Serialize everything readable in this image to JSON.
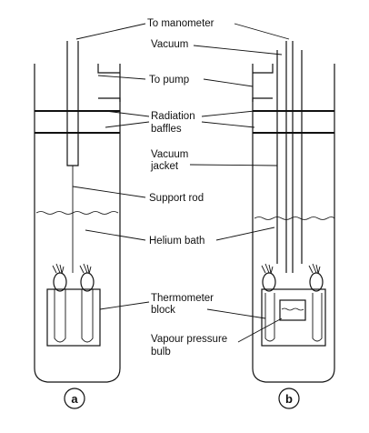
{
  "labels": {
    "to_manometer": "To manometer",
    "vacuum": "Vacuum",
    "to_pump": "To pump",
    "radiation_1": "Radiation",
    "radiation_2": "baffles",
    "vacuum_jacket_1": "Vacuum",
    "vacuum_jacket_2": "jacket",
    "support_rod": "Support rod",
    "helium_bath": "Helium bath",
    "thermometer_1": "Thermometer",
    "thermometer_2": "block",
    "vapour_1": "Vapour pressure",
    "vapour_2": "bulb"
  },
  "panels": {
    "a": "a",
    "b": "b"
  }
}
